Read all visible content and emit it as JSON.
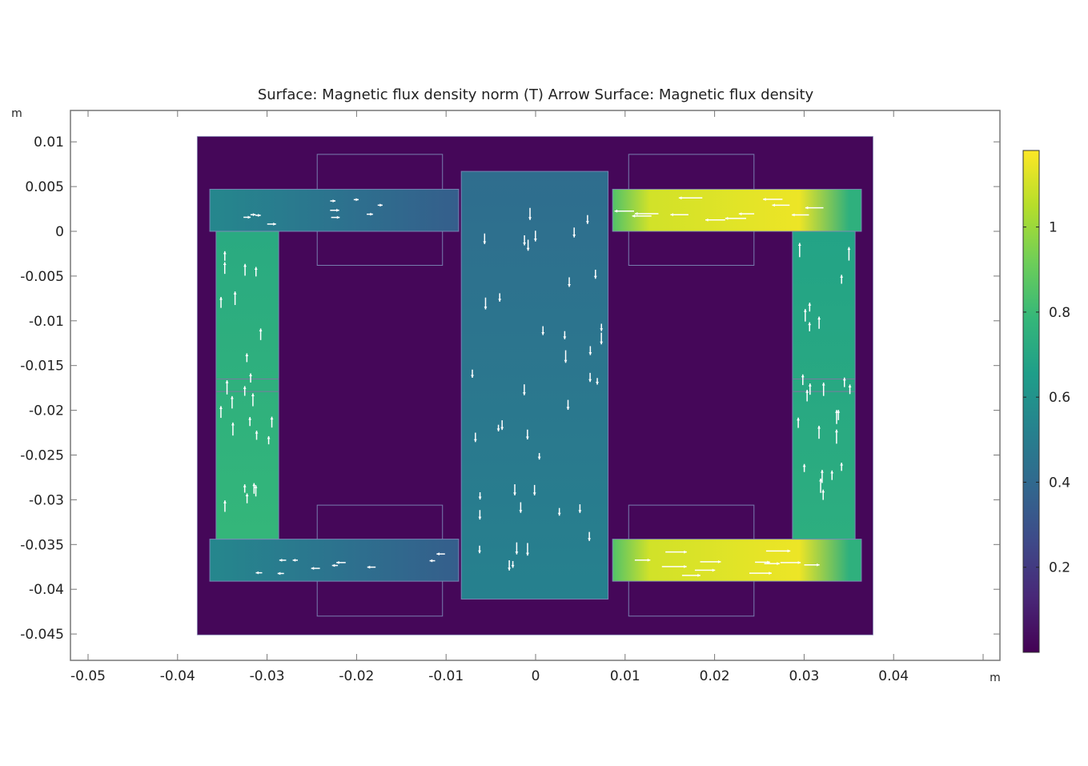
{
  "chart_data": {
    "type": "heatmap",
    "title": "Surface: Magnetic flux density norm (T)  Arrow Surface: Magnetic flux density",
    "xlabel": "m",
    "ylabel": "m",
    "xlim": [
      -0.052,
      0.052
    ],
    "ylim": [
      -0.048,
      0.0133
    ],
    "x_ticks": [
      "-0.05",
      "-0.04",
      "-0.03",
      "-0.02",
      "-0.01",
      "0",
      "0.01",
      "0.02",
      "0.03",
      "0.04"
    ],
    "x_tick_values": [
      -0.05,
      -0.04,
      -0.03,
      -0.02,
      -0.01,
      0,
      0.01,
      0.02,
      0.03,
      0.04
    ],
    "y_ticks": [
      "0.01",
      "0.005",
      "0",
      "-0.005",
      "-0.01",
      "-0.015",
      "-0.02",
      "-0.025",
      "-0.03",
      "-0.035",
      "-0.04",
      "-0.045"
    ],
    "y_tick_values": [
      0.01,
      0.005,
      0,
      -0.005,
      -0.01,
      -0.015,
      -0.02,
      -0.025,
      -0.03,
      -0.035,
      -0.04,
      -0.045
    ],
    "grid": false,
    "colormap": "viridis",
    "color_range": [
      0,
      1.18
    ],
    "colorbar": {
      "ticks": [
        "0.2",
        "0.4",
        "0.6",
        "0.8",
        "1"
      ],
      "tick_values": [
        0.2,
        0.4,
        0.6,
        0.8,
        1.0
      ],
      "placement": "right"
    },
    "regions": [
      {
        "name": "air",
        "x": [
          -0.0378,
          0.0377
        ],
        "y": [
          -0.0451,
          0.0106
        ],
        "B": 0.02
      },
      {
        "name": "coil-top-left",
        "x": [
          -0.0244,
          -0.0104
        ],
        "y": [
          -0.0038,
          0.0086
        ],
        "B": null
      },
      {
        "name": "coil-top-right",
        "x": [
          0.0104,
          0.0244
        ],
        "y": [
          -0.0038,
          0.0086
        ],
        "B": null
      },
      {
        "name": "coil-bottom-left",
        "x": [
          -0.0244,
          -0.0104
        ],
        "y": [
          -0.043,
          -0.0306
        ],
        "B": null
      },
      {
        "name": "coil-bottom-right",
        "x": [
          0.0104,
          0.0244
        ],
        "y": [
          -0.043,
          -0.0306
        ],
        "B": null
      },
      {
        "name": "yoke-top-left",
        "x": [
          -0.0364,
          -0.0086
        ],
        "y": [
          0,
          0.0047
        ],
        "B": [
          0.55,
          0.35
        ]
      },
      {
        "name": "yoke-bottom-left",
        "x": [
          -0.0364,
          -0.0086
        ],
        "y": [
          -0.0391,
          -0.0344
        ],
        "B": [
          0.55,
          0.35
        ]
      },
      {
        "name": "leg-left",
        "x": [
          -0.0357,
          -0.0287
        ],
        "y": [
          -0.0344,
          0
        ],
        "B": [
          0.72,
          0.78
        ]
      },
      {
        "name": "center-core",
        "x": [
          -0.0083,
          0.0081
        ],
        "y": [
          -0.0411,
          0.0067
        ],
        "B": [
          0.42,
          0.52
        ]
      },
      {
        "name": "yoke-top-right",
        "x": [
          0.0086,
          0.0364
        ],
        "y": [
          0,
          0.0047
        ],
        "B": [
          0.9,
          1.15
        ]
      },
      {
        "name": "yoke-bottom-right",
        "x": [
          0.0086,
          0.0364
        ],
        "y": [
          -0.0391,
          -0.0344
        ],
        "B": [
          0.9,
          1.15
        ]
      },
      {
        "name": "leg-right",
        "x": [
          0.0287,
          0.0357
        ],
        "y": [
          -0.0344,
          0
        ],
        "B": [
          0.68,
          0.74
        ]
      }
    ],
    "gap_lines_y": [
      -0.0165,
      -0.0179
    ],
    "arrow_color": "#ffffff"
  }
}
